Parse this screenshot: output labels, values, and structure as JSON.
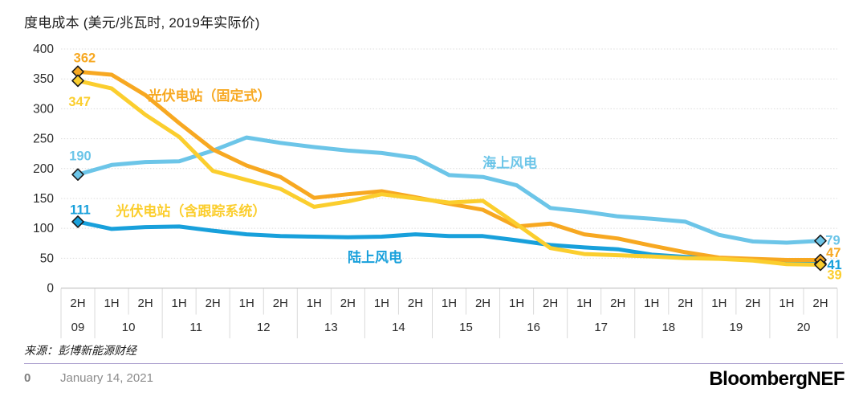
{
  "header": {
    "title": "度电成本 (美元/兆瓦时, 2019年实际价)"
  },
  "source_note": "来源：彭博新能源财经",
  "footer": {
    "page_number": "0",
    "date": "January 14, 2021",
    "logo": "BloombergNEF"
  },
  "chart_data": {
    "type": "line",
    "title": "度电成本 (美元/兆瓦时, 2019年实际价)",
    "ylim": [
      0,
      400
    ],
    "y_ticks": [
      400,
      350,
      300,
      250,
      200,
      150,
      100,
      50,
      0
    ],
    "grid": true,
    "x_axis": {
      "half_labels": [
        "2H",
        "1H",
        "2H",
        "1H",
        "2H",
        "1H",
        "2H",
        "1H",
        "2H",
        "1H",
        "2H",
        "1H",
        "2H",
        "1H",
        "2H",
        "1H",
        "2H",
        "1H",
        "2H",
        "1H",
        "2H",
        "1H",
        "2H"
      ],
      "years": [
        {
          "label": "09",
          "span": 1
        },
        {
          "label": "10",
          "span": 2
        },
        {
          "label": "11",
          "span": 2
        },
        {
          "label": "12",
          "span": 2
        },
        {
          "label": "13",
          "span": 2
        },
        {
          "label": "14",
          "span": 2
        },
        {
          "label": "15",
          "span": 2
        },
        {
          "label": "16",
          "span": 2
        },
        {
          "label": "17",
          "span": 2
        },
        {
          "label": "18",
          "span": 2
        },
        {
          "label": "19",
          "span": 2
        },
        {
          "label": "20",
          "span": 2
        }
      ]
    },
    "series": [
      {
        "id": "offshore_wind",
        "name": "海上风电",
        "color": "#6cc5e8",
        "values": [
          190,
          206,
          211,
          212,
          230,
          252,
          243,
          236,
          230,
          226,
          218,
          189,
          186,
          172,
          134,
          128,
          120,
          116,
          111,
          89,
          78,
          76,
          79
        ]
      },
      {
        "id": "onshore_wind",
        "name": "陆上风电",
        "color": "#18a0db",
        "values": [
          111,
          99,
          102,
          103,
          96,
          90,
          87,
          86,
          85,
          86,
          90,
          87,
          87,
          80,
          72,
          68,
          65,
          56,
          52,
          50,
          47,
          43,
          41
        ]
      },
      {
        "id": "pv_fixed",
        "name": "光伏电站（固定式）",
        "color": "#f7a821",
        "values": [
          362,
          357,
          323,
          276,
          232,
          205,
          186,
          151,
          157,
          162,
          152,
          141,
          131,
          103,
          108,
          90,
          83,
          71,
          60,
          51,
          49,
          47,
          47
        ]
      },
      {
        "id": "pv_tracking",
        "name": "光伏电站（含跟踪系统）",
        "color": "#fbce2e",
        "values": [
          347,
          334,
          290,
          253,
          196,
          181,
          166,
          136,
          145,
          157,
          150,
          143,
          146,
          107,
          67,
          57,
          55,
          53,
          50,
          49,
          46,
          40,
          39
        ]
      }
    ],
    "series_labels": [
      {
        "text": "光伏电站（固定式）",
        "series": "pv_fixed",
        "xi": 3.9,
        "v": 322
      },
      {
        "text": "海上风电",
        "series": "offshore_wind",
        "xi": 12.8,
        "v": 210
      },
      {
        "text": "光伏电站（含跟踪系统）",
        "series": "pv_tracking",
        "xi": 3.35,
        "v": 129
      },
      {
        "text": "陆上风电",
        "series": "onshore_wind",
        "xi": 8.8,
        "v": 52
      }
    ],
    "value_labels": [
      {
        "text": "362",
        "series": "pv_fixed",
        "xi": 0.2,
        "v": 385,
        "anchor": "middle"
      },
      {
        "text": "347",
        "series": "pv_tracking",
        "xi": 0.05,
        "v": 312,
        "anchor": "middle"
      },
      {
        "text": "190",
        "series": "offshore_wind",
        "xi": 0.07,
        "v": 221,
        "anchor": "middle"
      },
      {
        "text": "111",
        "series": "onshore_wind",
        "xi": 0.07,
        "v": 131,
        "anchor": "middle"
      },
      {
        "text": "79",
        "series": "offshore_wind",
        "xi": 22.15,
        "v": 80,
        "anchor": "start"
      },
      {
        "text": "47",
        "series": "pv_fixed",
        "xi": 22.17,
        "v": 59,
        "anchor": "start"
      },
      {
        "text": "41",
        "series": "onshore_wind",
        "xi": 22.2,
        "v": 39,
        "anchor": "start"
      },
      {
        "text": "39",
        "series": "pv_tracking",
        "xi": 22.2,
        "v": 22,
        "anchor": "start"
      }
    ],
    "colors": {
      "grid": "#dcdcdc",
      "axis": "#c6c6c6",
      "tick_text": "#2b2b2b",
      "divider": "#a79bcb",
      "marker_outline": "#1a1a1a"
    }
  }
}
